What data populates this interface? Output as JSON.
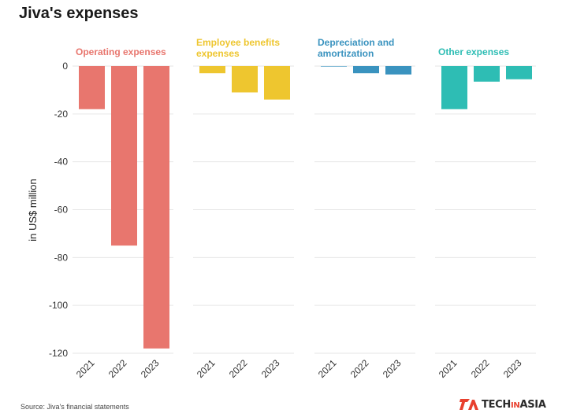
{
  "title": "Jiva's expenses",
  "source": "Source: Jiva's financial statements",
  "logo": {
    "part1": "TECH",
    "part2": "IN",
    "part3": "ASIA"
  },
  "chart_data": {
    "type": "bar",
    "ylabel": "in US$ million",
    "ylim": [
      -120,
      0
    ],
    "yticks": [
      0,
      -20,
      -40,
      -60,
      -80,
      -100,
      -120
    ],
    "categories": [
      "2021",
      "2022",
      "2023"
    ],
    "grid": true,
    "panels": [
      {
        "name": "Operating expenses",
        "label_lines": [
          "Operating expenses"
        ],
        "color": "#e8766e",
        "values": [
          -18,
          -75,
          -118
        ]
      },
      {
        "name": "Employee benefits expenses",
        "label_lines": [
          "Employee benefits",
          "expenses"
        ],
        "color": "#eec62f",
        "values": [
          -3,
          -11,
          -14
        ]
      },
      {
        "name": "Depreciation and amortization",
        "label_lines": [
          "Depreciation and",
          "amortization"
        ],
        "color": "#3a93bf",
        "values": [
          0,
          -3,
          -3.5
        ]
      },
      {
        "name": "Other expenses",
        "label_lines": [
          "Other expenses"
        ],
        "color": "#2ebdb4",
        "values": [
          -18,
          -6.5,
          -5.5
        ]
      }
    ]
  }
}
